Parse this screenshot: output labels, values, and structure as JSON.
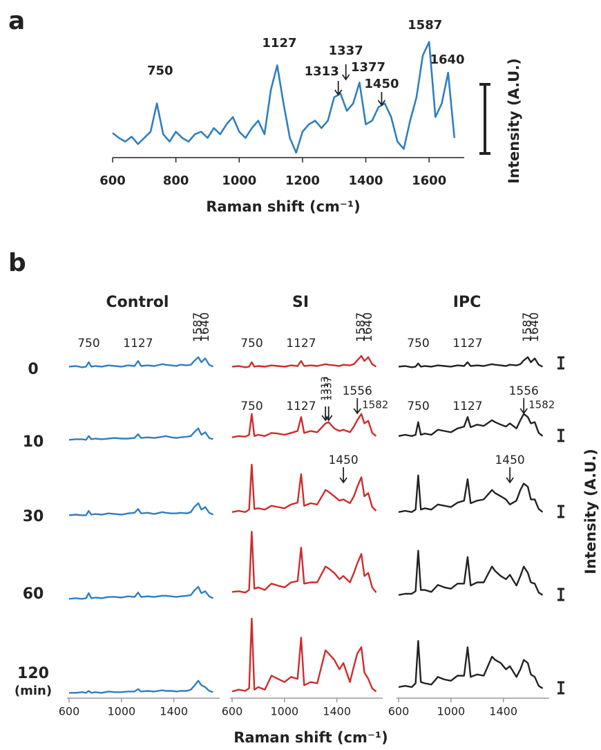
{
  "panel_labels": [
    "a",
    "b"
  ],
  "chart_data": [
    {
      "type": "line",
      "x_label": "Raman shift (cm⁻¹)",
      "y_label": "Intensity (A.U.)",
      "xlim": [
        600,
        1700
      ],
      "xticks": [
        600,
        800,
        1000,
        1200,
        1400,
        1600
      ],
      "ylim": [
        0,
        100
      ],
      "x": [
        600,
        620,
        640,
        660,
        680,
        700,
        720,
        740,
        760,
        780,
        800,
        820,
        840,
        860,
        880,
        900,
        920,
        940,
        960,
        980,
        1000,
        1020,
        1040,
        1060,
        1080,
        1100,
        1120,
        1140,
        1160,
        1180,
        1200,
        1220,
        1240,
        1260,
        1280,
        1300,
        1320,
        1340,
        1360,
        1380,
        1400,
        1420,
        1440,
        1460,
        1480,
        1500,
        1520,
        1540,
        1560,
        1580,
        1600,
        1620,
        1640,
        1660,
        1680
      ],
      "series": [
        {
          "color": "#2f7ec1",
          "values": [
            20,
            16,
            13,
            17,
            11,
            16,
            21,
            44,
            19,
            13,
            21,
            16,
            13,
            19,
            21,
            16,
            24,
            19,
            27,
            33,
            21,
            16,
            24,
            30,
            19,
            55,
            75,
            44,
            16,
            4,
            21,
            27,
            30,
            24,
            30,
            49,
            52,
            38,
            44,
            61,
            27,
            30,
            41,
            44,
            33,
            13,
            7,
            30,
            49,
            83,
            94,
            33,
            44,
            69,
            16
          ]
        }
      ],
      "peaks": [
        750,
        1127,
        1313,
        1337,
        1377,
        1450,
        1587,
        1640
      ],
      "arrows": [
        1313,
        1337,
        1450
      ]
    },
    {
      "type": "line",
      "title": "Control",
      "xlim": [
        600,
        1750
      ],
      "xticks": [
        600,
        1000,
        1400
      ],
      "ylim": [
        0,
        120
      ],
      "x": [
        600,
        650,
        700,
        730,
        750,
        770,
        800,
        850,
        900,
        950,
        1000,
        1050,
        1100,
        1127,
        1150,
        1200,
        1250,
        1313,
        1337,
        1380,
        1420,
        1450,
        1500,
        1530,
        1556,
        1587,
        1610,
        1640,
        1670,
        1700
      ],
      "series": [
        {
          "color": "#2f7ec1",
          "values": [
            5,
            6,
            4,
            5,
            12,
            5,
            6,
            5,
            7,
            6,
            5,
            7,
            6,
            14,
            6,
            7,
            6,
            9,
            8,
            7,
            6,
            8,
            7,
            8,
            14,
            20,
            12,
            18,
            8,
            5
          ],
          "peaks": [
            750,
            1127,
            1587,
            1640
          ]
        },
        {
          "color": "#2f7ec1",
          "values": [
            4,
            5,
            5,
            4,
            10,
            5,
            6,
            5,
            6,
            7,
            6,
            6,
            7,
            13,
            7,
            8,
            7,
            9,
            10,
            8,
            7,
            8,
            9,
            10,
            16,
            22,
            12,
            16,
            7,
            5
          ]
        },
        {
          "color": "#2f7ec1",
          "values": [
            5,
            6,
            5,
            5,
            12,
            6,
            7,
            6,
            8,
            7,
            6,
            8,
            9,
            15,
            8,
            9,
            7,
            10,
            9,
            8,
            8,
            9,
            8,
            10,
            18,
            24,
            14,
            18,
            9,
            6
          ]
        },
        {
          "color": "#2f7ec1",
          "values": [
            4,
            5,
            4,
            5,
            13,
            5,
            6,
            5,
            7,
            7,
            6,
            8,
            7,
            14,
            7,
            8,
            7,
            9,
            9,
            8,
            7,
            8,
            9,
            10,
            17,
            23,
            13,
            16,
            8,
            5
          ]
        },
        {
          "color": "#2f7ec1",
          "values": [
            3,
            3,
            4,
            3,
            6,
            3,
            4,
            3,
            5,
            4,
            4,
            5,
            5,
            9,
            5,
            6,
            5,
            7,
            6,
            6,
            5,
            6,
            6,
            8,
            14,
            22,
            15,
            12,
            6,
            4
          ]
        }
      ]
    },
    {
      "type": "line",
      "title": "SI",
      "xlim": [
        600,
        1750
      ],
      "xticks": [
        600,
        1000,
        1400
      ],
      "ylim": [
        0,
        120
      ],
      "x": [
        600,
        650,
        700,
        730,
        750,
        770,
        800,
        850,
        900,
        950,
        1000,
        1050,
        1100,
        1127,
        1150,
        1200,
        1250,
        1313,
        1337,
        1380,
        1420,
        1450,
        1500,
        1530,
        1556,
        1587,
        1610,
        1640,
        1670,
        1700
      ],
      "series": [
        {
          "color": "#d02a2a",
          "values": [
            5,
            6,
            4,
            5,
            12,
            5,
            6,
            5,
            7,
            6,
            5,
            7,
            6,
            14,
            6,
            7,
            6,
            9,
            8,
            7,
            6,
            8,
            7,
            9,
            15,
            22,
            14,
            20,
            9,
            5
          ],
          "peaks": [
            750,
            1127,
            1587,
            1640
          ]
        },
        {
          "color": "#d02a2a",
          "values": [
            8,
            10,
            9,
            12,
            45,
            10,
            12,
            10,
            15,
            14,
            12,
            15,
            18,
            40,
            15,
            18,
            16,
            30,
            32,
            22,
            18,
            20,
            16,
            25,
            35,
            45,
            30,
            34,
            15,
            10
          ],
          "peaks": [
            750,
            1127,
            1313,
            1337,
            1556,
            1582
          ],
          "arrows": [
            1313,
            1337,
            1556
          ]
        },
        {
          "color": "#d02a2a",
          "values": [
            10,
            12,
            10,
            14,
            85,
            15,
            16,
            14,
            20,
            18,
            16,
            22,
            25,
            70,
            20,
            24,
            22,
            45,
            42,
            35,
            28,
            30,
            24,
            35,
            50,
            65,
            35,
            40,
            18,
            12
          ],
          "peaks": [
            1450
          ],
          "arrows": [
            1450
          ]
        },
        {
          "color": "#d02a2a",
          "values": [
            15,
            16,
            14,
            18,
            110,
            20,
            22,
            18,
            28,
            25,
            22,
            30,
            32,
            85,
            28,
            30,
            30,
            55,
            52,
            45,
            35,
            40,
            30,
            45,
            60,
            75,
            40,
            45,
            22,
            14
          ]
        },
        {
          "color": "#d02a2a",
          "values": [
            5,
            8,
            6,
            10,
            120,
            8,
            12,
            8,
            30,
            25,
            20,
            28,
            25,
            90,
            15,
            20,
            18,
            70,
            65,
            55,
            40,
            50,
            20,
            45,
            65,
            75,
            35,
            25,
            10,
            5
          ]
        }
      ]
    },
    {
      "type": "line",
      "title": "IPC",
      "xlim": [
        600,
        1750
      ],
      "xticks": [
        600,
        1000,
        1400
      ],
      "ylim": [
        0,
        120
      ],
      "x": [
        600,
        650,
        700,
        730,
        750,
        770,
        800,
        850,
        900,
        950,
        1000,
        1050,
        1100,
        1127,
        1150,
        1200,
        1250,
        1313,
        1337,
        1380,
        1420,
        1450,
        1500,
        1530,
        1556,
        1587,
        1610,
        1640,
        1670,
        1700
      ],
      "series": [
        {
          "color": "#222222",
          "values": [
            5,
            6,
            4,
            5,
            10,
            5,
            6,
            5,
            7,
            6,
            5,
            7,
            6,
            12,
            6,
            7,
            6,
            9,
            8,
            7,
            6,
            8,
            7,
            9,
            15,
            20,
            12,
            18,
            8,
            5
          ],
          "peaks": [
            750,
            1127,
            1587,
            1640
          ]
        },
        {
          "color": "#222222",
          "values": [
            10,
            12,
            10,
            12,
            32,
            12,
            14,
            12,
            20,
            18,
            16,
            22,
            25,
            40,
            24,
            28,
            26,
            35,
            32,
            28,
            25,
            30,
            22,
            35,
            45,
            40,
            30,
            32,
            15,
            10
          ],
          "peaks": [
            750,
            1127,
            1556,
            1582
          ],
          "arrows": [
            1556
          ]
        },
        {
          "color": "#222222",
          "values": [
            10,
            12,
            10,
            14,
            68,
            14,
            16,
            14,
            22,
            20,
            18,
            25,
            28,
            62,
            24,
            28,
            30,
            45,
            40,
            35,
            30,
            22,
            28,
            45,
            55,
            50,
            30,
            30,
            15,
            10
          ],
          "peaks": [
            1450
          ],
          "arrows": [
            1450
          ]
        },
        {
          "color": "#222222",
          "values": [
            10,
            12,
            12,
            16,
            80,
            18,
            18,
            15,
            26,
            22,
            20,
            28,
            28,
            70,
            25,
            30,
            30,
            55,
            48,
            40,
            35,
            42,
            25,
            40,
            55,
            45,
            30,
            28,
            14,
            10
          ]
        },
        {
          "color": "#222222",
          "values": [
            12,
            14,
            12,
            18,
            85,
            20,
            18,
            16,
            28,
            24,
            22,
            30,
            30,
            75,
            28,
            32,
            30,
            60,
            55,
            50,
            40,
            45,
            28,
            40,
            55,
            50,
            32,
            28,
            14,
            10
          ]
        }
      ]
    }
  ],
  "times": [
    0,
    10,
    30,
    60,
    120
  ],
  "time_unit": "(min)",
  "x_label_b": "Raman shift (cm⁻¹)",
  "y_label_b": "Intensity (A.U.)"
}
